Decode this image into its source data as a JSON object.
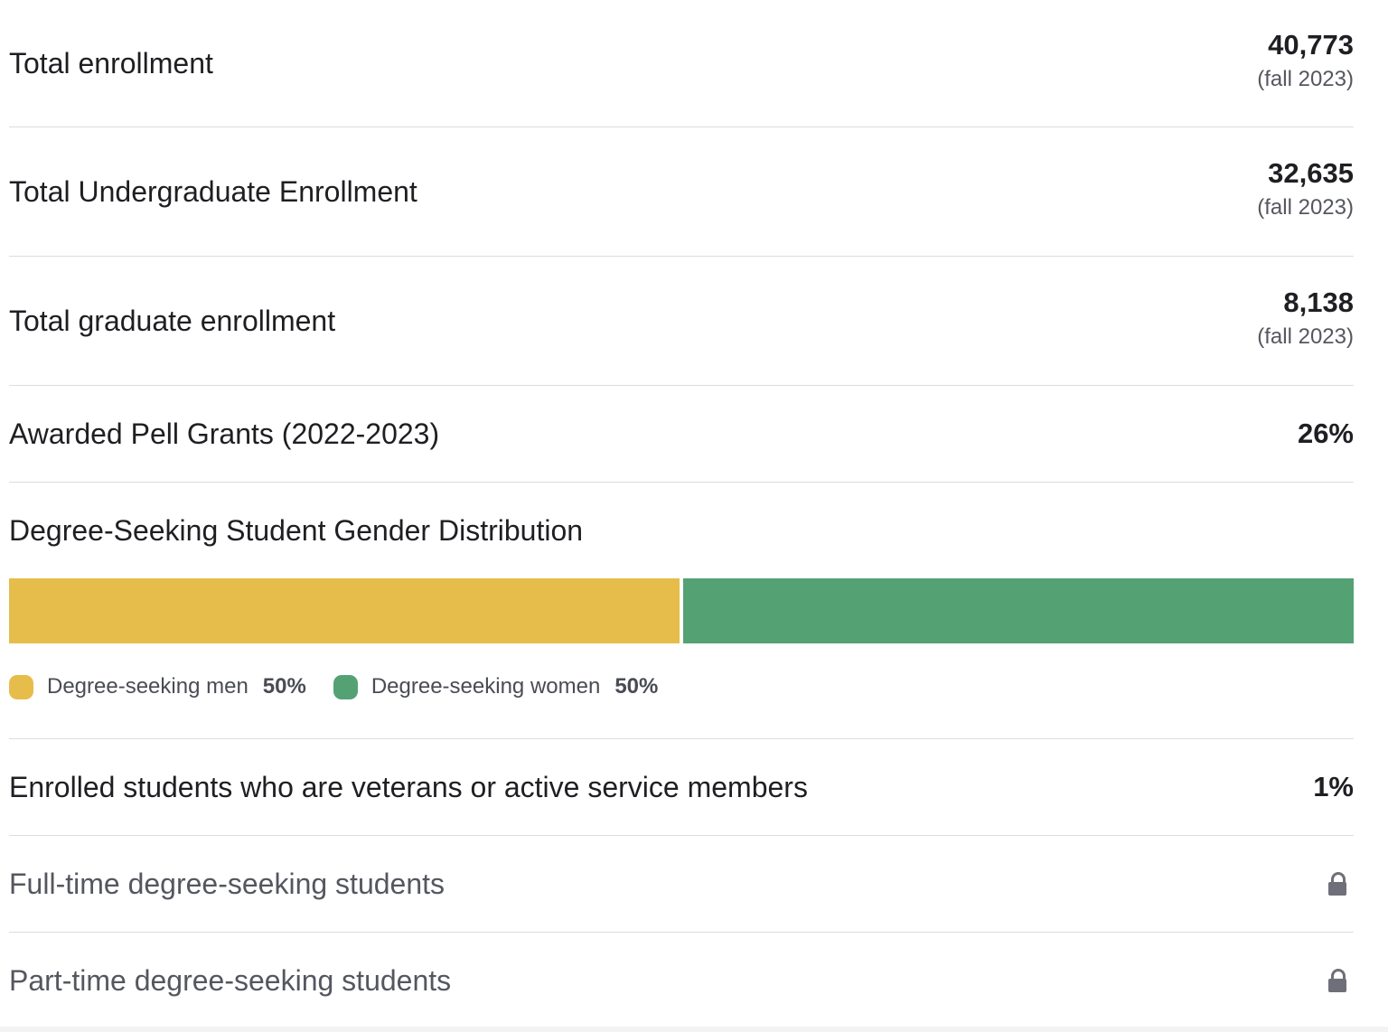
{
  "rows": [
    {
      "label": "Total enrollment",
      "value": "40,773",
      "sub": "(fall 2023)"
    },
    {
      "label": "Total Undergraduate Enrollment",
      "value": "32,635",
      "sub": "(fall 2023)"
    },
    {
      "label": "Total graduate enrollment",
      "value": "8,138",
      "sub": "(fall 2023)"
    },
    {
      "label": "Awarded Pell Grants (2022-2023)",
      "value": "26%"
    }
  ],
  "gender": {
    "title": "Degree-Seeking Student Gender Distribution",
    "segments": [
      {
        "label": "Degree-seeking men",
        "pct": "50%",
        "fraction": 0.5,
        "color": "#e6bd4a"
      },
      {
        "label": "Degree-seeking women",
        "pct": "50%",
        "fraction": 0.5,
        "color": "#54a274"
      }
    ]
  },
  "veterans": {
    "label": "Enrolled students who are veterans or active service members",
    "value": "1%"
  },
  "locked_rows": [
    {
      "label": "Full-time degree-seeking students",
      "icon": "lock-icon"
    },
    {
      "label": "Part-time degree-seeking students",
      "icon": "lock-icon"
    }
  ]
}
